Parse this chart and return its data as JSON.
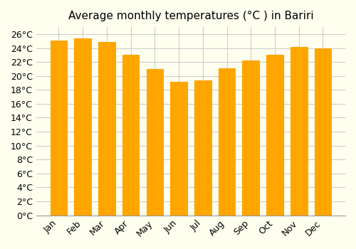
{
  "title": "Average monthly temperatures (°C ) in Bariri",
  "months": [
    "Jan",
    "Feb",
    "Mar",
    "Apr",
    "May",
    "Jun",
    "Jul",
    "Aug",
    "Sep",
    "Oct",
    "Nov",
    "Dec"
  ],
  "values": [
    25.1,
    25.4,
    24.9,
    23.0,
    21.0,
    19.2,
    19.4,
    21.1,
    22.2,
    23.0,
    24.2,
    23.9
  ],
  "bar_color": "#FFA500",
  "bar_edge_color": "#E08000",
  "background_color": "#FFFFF0",
  "grid_color": "#cccccc",
  "ylim": [
    0,
    27
  ],
  "yticks": [
    0,
    2,
    4,
    6,
    8,
    10,
    12,
    14,
    16,
    18,
    20,
    22,
    24,
    26
  ],
  "title_fontsize": 11,
  "tick_fontsize": 9
}
